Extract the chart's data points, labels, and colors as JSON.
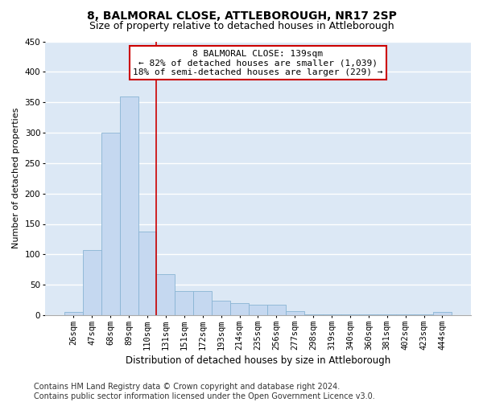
{
  "title": "8, BALMORAL CLOSE, ATTLEBOROUGH, NR17 2SP",
  "subtitle": "Size of property relative to detached houses in Attleborough",
  "xlabel": "Distribution of detached houses by size in Attleborough",
  "ylabel": "Number of detached properties",
  "footer_line1": "Contains HM Land Registry data © Crown copyright and database right 2024.",
  "footer_line2": "Contains public sector information licensed under the Open Government Licence v3.0.",
  "annotation_line1": "8 BALMORAL CLOSE: 139sqm",
  "annotation_line2": "← 82% of detached houses are smaller (1,039)",
  "annotation_line3": "18% of semi-detached houses are larger (229) →",
  "bar_color": "#c5d8f0",
  "bar_edge_color": "#89b4d4",
  "vline_color": "#cc0000",
  "background_color": "#dce8f5",
  "grid_color": "#ffffff",
  "fig_color": "#ffffff",
  "annotation_box_color": "#ffffff",
  "annotation_box_edge": "#cc0000",
  "bin_labels": [
    "26sqm",
    "47sqm",
    "68sqm",
    "89sqm",
    "110sqm",
    "131sqm",
    "151sqm",
    "172sqm",
    "193sqm",
    "214sqm",
    "235sqm",
    "256sqm",
    "277sqm",
    "298sqm",
    "319sqm",
    "340sqm",
    "360sqm",
    "381sqm",
    "402sqm",
    "423sqm",
    "444sqm"
  ],
  "bar_heights": [
    5,
    107,
    300,
    360,
    137,
    68,
    40,
    40,
    24,
    20,
    17,
    17,
    6,
    1,
    1,
    1,
    1,
    1,
    1,
    1,
    5
  ],
  "vline_x": 4.5,
  "ylim": [
    0,
    450
  ],
  "yticks": [
    0,
    50,
    100,
    150,
    200,
    250,
    300,
    350,
    400,
    450
  ],
  "title_fontsize": 10,
  "subtitle_fontsize": 9,
  "xlabel_fontsize": 8.5,
  "ylabel_fontsize": 8,
  "tick_fontsize": 7.5,
  "annotation_fontsize": 8,
  "footer_fontsize": 7
}
